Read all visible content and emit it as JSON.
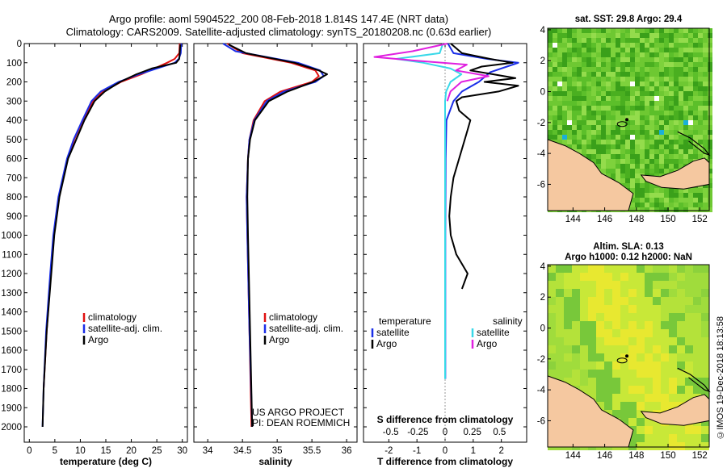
{
  "title": {
    "line1": "Argo profile: aoml 5904522_200 08-Feb-2018 1.814S 147.4E (NRT data)",
    "line2": "Climatology: CARS2009. Satellite-adjusted climatology: synTS_20180208.nc (0.63d earlier)"
  },
  "colors": {
    "climatology": "#e01010",
    "satellite": "#1a2ee8",
    "argo": "#000000",
    "sat_salinity": "#38d8e8",
    "argo_salinity_diff": "#e020e0",
    "land": "#f5c8a0",
    "ocean_green": "#6ec832"
  },
  "footer": "©IMOS 19-Dec-2018 18:13:58",
  "chart_data": [
    {
      "id": "temperature-profile",
      "type": "line",
      "xlabel": "temperature (deg C)",
      "ylabel": "",
      "xlim": [
        -1,
        31
      ],
      "ylim": [
        2080,
        0
      ],
      "xticks": [
        0,
        5,
        10,
        15,
        20,
        25,
        30
      ],
      "xtick_labels": [
        "0",
        "5",
        "10",
        "15",
        "20",
        "25",
        "30"
      ],
      "yticks": [
        0,
        100,
        200,
        300,
        400,
        500,
        600,
        700,
        800,
        900,
        1000,
        1100,
        1200,
        1300,
        1400,
        1500,
        1600,
        1700,
        1800,
        1900,
        2000
      ],
      "ytick_labels": [
        "0",
        "100",
        "200",
        "300",
        "400",
        "500",
        "600",
        "700",
        "800",
        "900",
        "1000",
        "1100",
        "1200",
        "1300",
        "1400",
        "1500",
        "1600",
        "1700",
        "1800",
        "1900",
        "2000"
      ],
      "legend": [
        "climatology",
        "satellite-adj. clim.",
        "Argo"
      ],
      "series": [
        {
          "name": "climatology",
          "color": "red",
          "depth": [
            0,
            50,
            80,
            100,
            130,
            160,
            200,
            250,
            300,
            400,
            500,
            600,
            800,
            1000,
            1200,
            1500,
            1800
          ],
          "values": [
            29.5,
            29.4,
            28.5,
            27,
            24.5,
            22,
            18,
            14.5,
            12.5,
            10.5,
            8.8,
            7.5,
            5.8,
            4.8,
            4.2,
            3.4,
            2.8
          ]
        },
        {
          "name": "satellite-adj. clim.",
          "color": "blue",
          "depth": [
            0,
            50,
            80,
            100,
            130,
            160,
            200,
            250,
            300,
            400,
            500,
            600,
            800,
            1000,
            1200,
            1500,
            1800,
            2000
          ],
          "values": [
            29.8,
            29.7,
            29.3,
            28.5,
            25,
            21.5,
            17.5,
            14,
            12.2,
            10.4,
            8.7,
            7.4,
            5.7,
            4.7,
            4.1,
            3.3,
            2.8,
            2.6
          ]
        },
        {
          "name": "Argo",
          "color": "black",
          "depth": [
            5,
            50,
            80,
            100,
            130,
            160,
            200,
            250,
            300,
            400,
            500,
            600,
            800,
            1000,
            1200,
            1500,
            1800,
            2000
          ],
          "values": [
            29.6,
            29.5,
            29.4,
            28.8,
            24,
            21,
            17.8,
            14.8,
            12.8,
            10.8,
            9.2,
            7.6,
            5.9,
            4.9,
            4.3,
            3.4,
            2.8,
            2.6
          ]
        }
      ]
    },
    {
      "id": "salinity-profile",
      "type": "line",
      "xlabel": "salinity",
      "ylabel": "",
      "xlim": [
        33.8,
        36.15
      ],
      "ylim": [
        2080,
        0
      ],
      "xticks": [
        34,
        34.5,
        35,
        35.5,
        36
      ],
      "xtick_labels": [
        "34",
        "34.5",
        "35",
        "35.5",
        "36"
      ],
      "legend": [
        "climatology",
        "satellite-adj. clim.",
        "Argo"
      ],
      "annotation": [
        "US ARGO PROJECT",
        "PI: DEAN ROEMMICH"
      ],
      "series": [
        {
          "name": "climatology",
          "color": "red",
          "depth": [
            0,
            50,
            100,
            140,
            170,
            200,
            250,
            300,
            400,
            500,
            600,
            800,
            1000,
            1500,
            2000
          ],
          "values": [
            34.28,
            34.5,
            35.2,
            35.55,
            35.6,
            35.5,
            35.05,
            34.82,
            34.66,
            34.6,
            34.58,
            34.56,
            34.57,
            34.6,
            34.63
          ]
        },
        {
          "name": "satellite-adj. clim.",
          "color": "blue",
          "depth": [
            0,
            40,
            100,
            140,
            170,
            200,
            250,
            300,
            400,
            500,
            600,
            800,
            1000,
            1500,
            2000
          ],
          "values": [
            34.22,
            34.4,
            35.3,
            35.62,
            35.67,
            35.55,
            35.1,
            34.85,
            34.67,
            34.6,
            34.58,
            34.56,
            34.57,
            34.6,
            34.64
          ]
        },
        {
          "name": "Argo",
          "color": "black",
          "depth": [
            5,
            50,
            100,
            140,
            160,
            180,
            200,
            250,
            300,
            400,
            500,
            600,
            800,
            1000,
            1500,
            2000
          ],
          "values": [
            34.3,
            34.55,
            35.25,
            35.6,
            35.72,
            35.62,
            35.52,
            35.15,
            34.88,
            34.68,
            34.61,
            34.58,
            34.57,
            34.58,
            34.61,
            34.64
          ]
        }
      ]
    },
    {
      "id": "difference-profile",
      "type": "line",
      "xlabel": "T difference from climatology",
      "xlabel_top": "S difference from climatology",
      "xlim": [
        -2.9,
        2.9
      ],
      "ylim": [
        2080,
        0
      ],
      "xticks": [
        -2,
        -1,
        0,
        1,
        2
      ],
      "xtick_labels": [
        "-2",
        "-1",
        "0",
        "1",
        "2"
      ],
      "s_ticks": [
        -0.5,
        -0.25,
        0,
        0.25,
        0.5
      ],
      "s_tick_labels": [
        "-0.5",
        "-0.25",
        "0",
        "0.25",
        "0.5"
      ],
      "legend_left_title": "temperature",
      "legend_left": [
        "satellite",
        "Argo"
      ],
      "legend_right_title": "salinity",
      "legend_right": [
        "satellite",
        "Argo"
      ],
      "series": [
        {
          "name": "T satellite",
          "color": "blue",
          "depth": [
            0,
            50,
            80,
            100,
            120,
            150,
            200,
            250,
            300,
            400,
            600,
            1000,
            1400,
            1750
          ],
          "values": [
            0.1,
            0.3,
            1.5,
            2.6,
            2.2,
            1.6,
            1.2,
            0.6,
            0.3,
            0.05,
            0.02,
            0.01,
            0.01,
            0.01
          ]
        },
        {
          "name": "T Argo",
          "color": "black",
          "depth": [
            0,
            50,
            80,
            100,
            120,
            140,
            160,
            180,
            200,
            220,
            250,
            280,
            300,
            350,
            400,
            450,
            500,
            600,
            700,
            800,
            900,
            1000,
            1100,
            1200,
            1280
          ],
          "values": [
            0.2,
            0.6,
            1.6,
            2.4,
            1.3,
            0.9,
            1.7,
            2.5,
            1.4,
            2.6,
            1.9,
            0.6,
            0.4,
            0.5,
            0.9,
            0.8,
            0.7,
            0.5,
            0.3,
            0.2,
            0.15,
            0.2,
            0.4,
            0.8,
            0.6
          ]
        },
        {
          "name": "S satellite",
          "color": "cyan",
          "depth": [
            0,
            50,
            80,
            100,
            130,
            160,
            200,
            250,
            300,
            400,
            600,
            1000,
            1750
          ],
          "values": [
            -0.02,
            -0.05,
            -0.45,
            -0.2,
            0.05,
            0.15,
            0.05,
            0.01,
            0.0,
            0.0,
            0.0,
            0.0,
            0.0
          ]
        },
        {
          "name": "S Argo",
          "color": "magenta",
          "depth": [
            0,
            40,
            70,
            90,
            110,
            140,
            170,
            200,
            250,
            300
          ],
          "values": [
            0.02,
            -0.3,
            -0.65,
            -0.25,
            0.2,
            0.1,
            0.4,
            0.15,
            0.05,
            0.02
          ]
        }
      ]
    },
    {
      "id": "sst-map",
      "type": "heatmap",
      "title": "sat. SST: 29.8 Argo: 29.4",
      "xlim": [
        142.4,
        152.6
      ],
      "ylim": [
        -7.7,
        4.1
      ],
      "xticks": [
        144,
        146,
        148,
        150,
        152
      ],
      "xtick_labels": [
        "144",
        "146",
        "148",
        "150",
        "152"
      ],
      "yticks": [
        4,
        2,
        0,
        -2,
        -4,
        -6
      ],
      "ytick_labels": [
        "4",
        "2",
        "0",
        "-2",
        "-4",
        "-6"
      ],
      "argo_position": [
        147.4,
        -1.814
      ]
    },
    {
      "id": "sla-map",
      "type": "heatmap",
      "title_line1": "Altim. SLA: 0.13",
      "title_line2": "Argo h1000: 0.12 h2000: NaN",
      "xlim": [
        142.4,
        152.6
      ],
      "ylim": [
        -7.7,
        4.1
      ],
      "xticks": [
        144,
        146,
        148,
        150,
        152
      ],
      "xtick_labels": [
        "144",
        "146",
        "148",
        "150",
        "152"
      ],
      "yticks": [
        4,
        2,
        0,
        -2,
        -4,
        -6
      ],
      "ytick_labels": [
        "4",
        "2",
        "0",
        "-2",
        "-4",
        "-6"
      ],
      "argo_position": [
        147.4,
        -1.814
      ]
    }
  ]
}
